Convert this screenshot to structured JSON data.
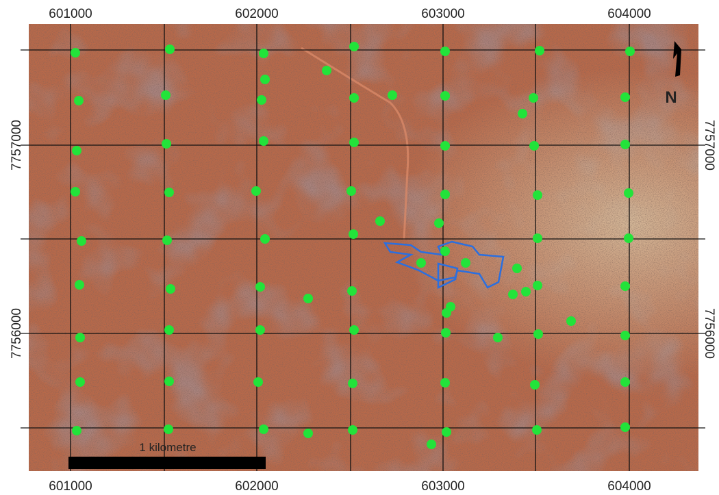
{
  "map": {
    "x_labels": [
      601000,
      602000,
      603000,
      604000
    ],
    "y_labels": [
      7757000,
      7756000
    ],
    "north": "N",
    "scale_bar": "1 kilometre"
  }
}
